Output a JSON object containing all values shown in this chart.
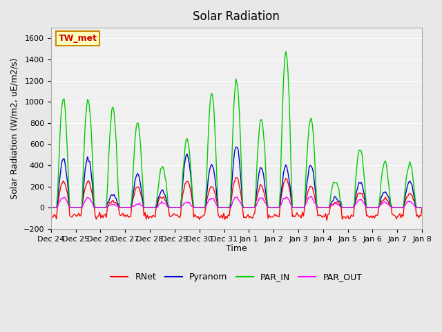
{
  "title": "Solar Radiation",
  "ylabel": "Solar Radiation (W/m2, uE/m2/s)",
  "xlabel": "Time",
  "ylim": [
    -200,
    1700
  ],
  "yticks": [
    -200,
    0,
    200,
    400,
    600,
    800,
    1000,
    1200,
    1400,
    1600
  ],
  "site_label": "TW_met",
  "site_label_bg": "#FFFFC0",
  "site_label_border": "#CC8800",
  "colors": {
    "RNet": "#FF0000",
    "Pyranom": "#0000CC",
    "PAR_IN": "#00CC00",
    "PAR_OUT": "#FF00FF"
  },
  "legend_entries": [
    "RNet",
    "Pyranom",
    "PAR_IN",
    "PAR_OUT"
  ],
  "x_tick_labels": [
    "Dec 24",
    "Dec 25",
    "Dec 26",
    "Dec 27",
    "Dec 28",
    "Dec 29",
    "Dec 30",
    "Dec 31",
    "Jan 1",
    "Jan 2",
    "Jan 3",
    "Jan 4",
    "Jan 5",
    "Jan 6",
    "Jan 7",
    "Jan 8"
  ],
  "bg_color": "#E8E8E8",
  "plot_bg_color": "#F0F0F0",
  "grid_color": "#FFFFFF",
  "n_points": 336,
  "par_in_peaks": [
    1030,
    1035,
    940,
    800,
    390,
    650,
    1090,
    1210,
    850,
    1480,
    860,
    250,
    560,
    420,
    420
  ],
  "pyranom_peaks": [
    470,
    470,
    130,
    315,
    160,
    500,
    410,
    590,
    380,
    400,
    400,
    100,
    240,
    160,
    250
  ],
  "rnet_peaks": [
    250,
    250,
    60,
    200,
    100,
    250,
    200,
    280,
    200,
    280,
    200,
    50,
    150,
    80,
    130
  ],
  "par_out_peaks": [
    100,
    95,
    30,
    30,
    50,
    50,
    85,
    95,
    90,
    100,
    100,
    40,
    75,
    50,
    60
  ]
}
